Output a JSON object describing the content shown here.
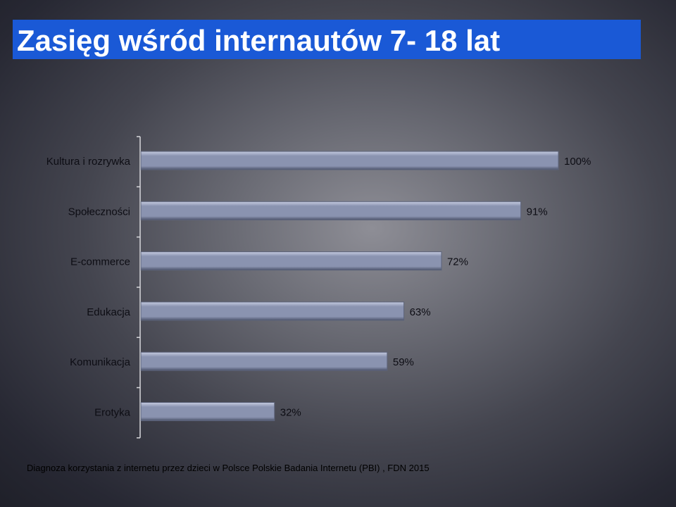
{
  "header": {
    "title": "Zasięg wśród internautów  7- 18 lat"
  },
  "colors": {
    "title_bg": "#1a59d6",
    "bar_fill": "#8a93b0",
    "bar_light": "#c5cbe0",
    "bar_dark": "#4c536b"
  },
  "chart_data": {
    "type": "bar",
    "orientation": "horizontal",
    "categories": [
      "Kultura i rozrywka",
      "Społeczności",
      "E-commerce",
      "Edukacja",
      "Komunikacja",
      "Erotyka"
    ],
    "values": [
      100,
      91,
      72,
      63,
      59,
      32
    ],
    "value_labels": [
      "100%",
      "91%",
      "72%",
      "63%",
      "59%",
      "32%"
    ],
    "xlim": [
      0,
      100
    ],
    "grid": false
  },
  "footer": {
    "source": "Diagnoza korzystania z internetu przez dzieci w Polsce  Polskie Badania Internetu (PBI) , FDN 2015"
  }
}
